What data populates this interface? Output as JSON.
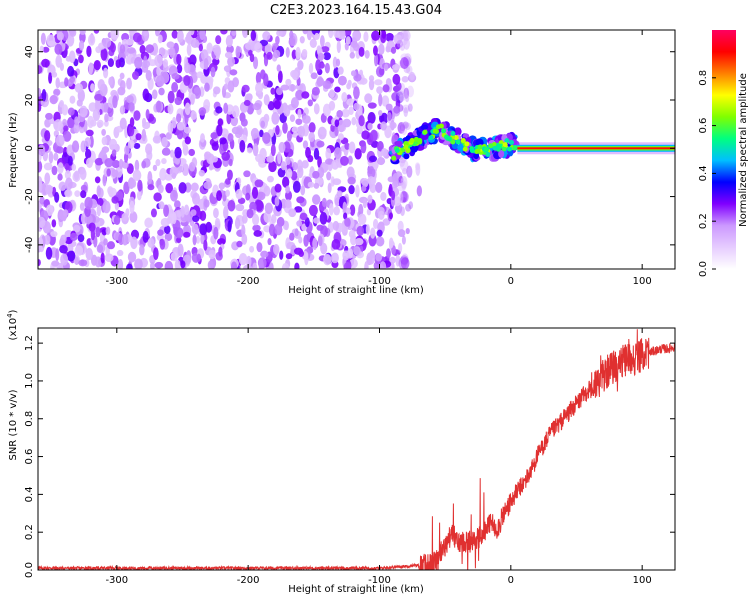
{
  "title": "C2E3.2023.164.15.43.G04",
  "chart_data": [
    {
      "type": "heatmap",
      "xlabel": "Height of straight line (km)",
      "ylabel": "Frequency (Hz)",
      "xlim": [
        -360,
        125
      ],
      "ylim": [
        -50,
        49
      ],
      "x_ticks": [
        -300,
        -200,
        -100,
        0,
        100
      ],
      "y_ticks": [
        -40,
        -20,
        0,
        20,
        40
      ],
      "description_series": [
        {
          "name": "noise_region",
          "x_range": [
            -360,
            -75
          ],
          "y_range": [
            -50,
            49
          ],
          "amplitude_range": [
            0.1,
            0.3
          ]
        },
        {
          "name": "transition",
          "x_range": [
            -90,
            5
          ],
          "center_freq": [
            -3,
            1,
            5,
            8,
            4,
            0,
            -1,
            1,
            2
          ],
          "amplitude_range": [
            0.2,
            0.45
          ]
        },
        {
          "name": "signal_line",
          "x_range": [
            5,
            125
          ],
          "center_freq": 0,
          "amplitude": 0.9
        }
      ],
      "colorbar": {
        "label": "Normalized spectral amplitude",
        "ticks": [
          "0.0",
          "0.2",
          "0.4",
          "0.6",
          "0.8"
        ],
        "range": [
          0,
          1
        ],
        "colors": [
          "#ffffff",
          "#e6ccff",
          "#cc99ff",
          "#8000ff",
          "#0000ff",
          "#00bfff",
          "#00ff80",
          "#80ff00",
          "#ffff00",
          "#ff8000",
          "#ff0000",
          "#ff0060"
        ]
      }
    },
    {
      "type": "line",
      "xlabel": "Height of straight line (km)",
      "ylabel": "SNR (10 * v/v)",
      "y_multiplier": "(x10",
      "y_multiplier_exp": "4",
      "y_multiplier_close": ")",
      "xlim": [
        -360,
        125
      ],
      "ylim": [
        0,
        1.28
      ],
      "x_ticks": [
        -300,
        -200,
        -100,
        0,
        100
      ],
      "y_ticks": [
        "0.0",
        "0.2",
        "0.4",
        "0.6",
        "0.8",
        "1.0",
        "1.2"
      ],
      "color": "#e03030",
      "x": [
        -360,
        -300,
        -200,
        -100,
        -60,
        -50,
        -45,
        -40,
        -35,
        -30,
        -25,
        -20,
        -15,
        -10,
        -5,
        0,
        5,
        10,
        15,
        20,
        25,
        30,
        35,
        40,
        45,
        50,
        55,
        60,
        65,
        70,
        75,
        80,
        85,
        90,
        95,
        100,
        105,
        110,
        115,
        120,
        125
      ],
      "y": [
        0.01,
        0.01,
        0.01,
        0.01,
        0.03,
        0.12,
        0.2,
        0.14,
        0.16,
        0.15,
        0.17,
        0.2,
        0.25,
        0.22,
        0.3,
        0.36,
        0.42,
        0.46,
        0.52,
        0.6,
        0.66,
        0.72,
        0.76,
        0.8,
        0.84,
        0.88,
        0.92,
        0.96,
        0.99,
        1.02,
        1.06,
        1.08,
        1.1,
        1.12,
        1.12,
        1.14,
        1.15,
        1.16,
        1.17,
        1.17,
        1.18
      ]
    }
  ]
}
